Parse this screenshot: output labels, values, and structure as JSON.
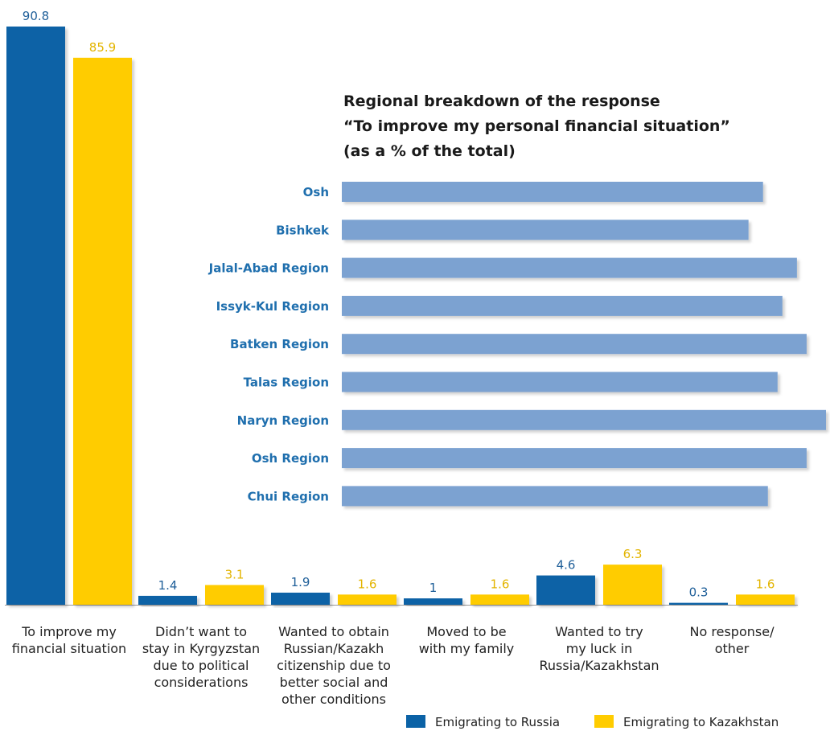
{
  "colors": {
    "russia": "#0b62a6",
    "kazakhstan": "#ffcc00",
    "regional_bar": "#7ba2d1",
    "region_label": "#1f6fae",
    "baseline": "#999999"
  },
  "chart_data": [
    {
      "type": "bar",
      "categories": [
        [
          "To improve my",
          "financial situation"
        ],
        [
          "Didn’t want to",
          "stay in Kyrgyzstan",
          "due to political",
          "considerations"
        ],
        [
          "Wanted to obtain",
          "Russian/Kazakh",
          "citizenship due to",
          "better social and",
          "other conditions"
        ],
        [
          "Moved to be",
          "with my family"
        ],
        [
          "Wanted to try",
          "my luck in",
          "Russia/Kazakhstan"
        ],
        [
          "No response/",
          "other"
        ]
      ],
      "series": [
        {
          "name": "Emigrating to Russia",
          "values": [
            90.8,
            1.4,
            1.9,
            1,
            4.6,
            0.3
          ],
          "labels": [
            "90.8",
            "1.4",
            "1.9",
            "1",
            "4.6",
            "0.3"
          ]
        },
        {
          "name": "Emigrating to Kazakhstan",
          "values": [
            85.9,
            3.1,
            1.6,
            1.6,
            6.3,
            1.6
          ],
          "labels": [
            "85.9",
            "3.1",
            "1.6",
            "1.6",
            "6.3",
            "1.6"
          ]
        }
      ],
      "ylim": [
        0,
        90.8
      ],
      "legend": "bottom-right",
      "grid": false
    },
    {
      "type": "bar",
      "orientation": "horizontal",
      "title": [
        "Regional breakdown of the response",
        "“To improve my personal financial situation”",
        "(as a % of the total)"
      ],
      "categories": [
        "Osh",
        "Bishkek",
        "Jalal-Abad Region",
        "Issyk-Kul Region",
        "Batken Region",
        "Talas Region",
        "Naryn Region",
        "Osh Region",
        "Chui Region"
      ],
      "values": [
        87,
        84,
        94,
        91,
        96,
        90,
        100,
        96,
        88
      ],
      "xlim": [
        0,
        100
      ],
      "grid": false
    }
  ]
}
